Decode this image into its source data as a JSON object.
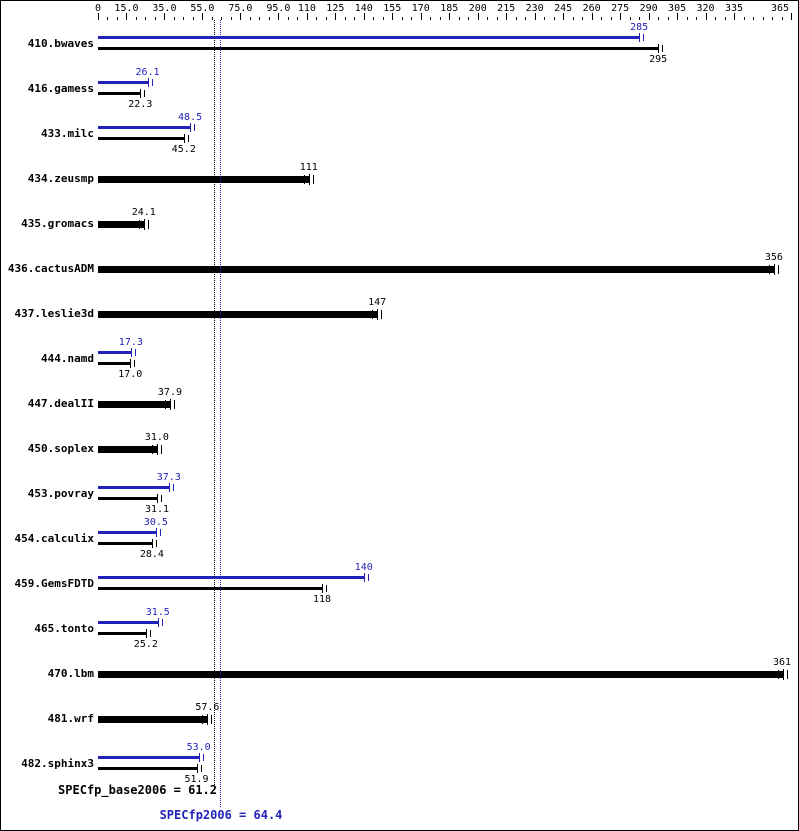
{
  "chart_data": {
    "type": "bar",
    "orientation": "horizontal",
    "xlim": [
      0,
      365
    ],
    "grid": false,
    "minor_tick_step": 5,
    "colors": {
      "peak": "#2222bb",
      "base": "#000000"
    },
    "axis_ticks": [
      {
        "value": 0,
        "label": "0"
      },
      {
        "value": 15,
        "label": "15.0"
      },
      {
        "value": 35,
        "label": "35.0"
      },
      {
        "value": 55,
        "label": "55.0"
      },
      {
        "value": 75,
        "label": "75.0"
      },
      {
        "value": 95,
        "label": "95.0"
      },
      {
        "value": 110,
        "label": "110"
      },
      {
        "value": 125,
        "label": "125"
      },
      {
        "value": 140,
        "label": "140"
      },
      {
        "value": 155,
        "label": "155"
      },
      {
        "value": 170,
        "label": "170"
      },
      {
        "value": 185,
        "label": "185"
      },
      {
        "value": 200,
        "label": "200"
      },
      {
        "value": 215,
        "label": "215"
      },
      {
        "value": 230,
        "label": "230"
      },
      {
        "value": 245,
        "label": "245"
      },
      {
        "value": 260,
        "label": "260"
      },
      {
        "value": 275,
        "label": "275"
      },
      {
        "value": 290,
        "label": "290"
      },
      {
        "value": 305,
        "label": "305"
      },
      {
        "value": 320,
        "label": "320"
      },
      {
        "value": 335,
        "label": "335"
      },
      {
        "value": 365,
        "label": "365"
      }
    ],
    "benchmarks": [
      {
        "name": "410.bwaves",
        "peak": 285,
        "peak_label": "285",
        "base": 295,
        "base_label": "295"
      },
      {
        "name": "416.gamess",
        "peak": 26.1,
        "peak_label": "26.1",
        "base": 22.3,
        "base_label": "22.3"
      },
      {
        "name": "433.milc",
        "peak": 48.5,
        "peak_label": "48.5",
        "base": 45.2,
        "base_label": "45.2"
      },
      {
        "name": "434.zeusmp",
        "base": 111,
        "base_label": "111"
      },
      {
        "name": "435.gromacs",
        "base": 24.1,
        "base_label": "24.1"
      },
      {
        "name": "436.cactusADM",
        "base": 356,
        "base_label": "356"
      },
      {
        "name": "437.leslie3d",
        "base": 147,
        "base_label": "147"
      },
      {
        "name": "444.namd",
        "peak": 17.3,
        "peak_label": "17.3",
        "base": 17.0,
        "base_label": "17.0"
      },
      {
        "name": "447.dealII",
        "base": 37.9,
        "base_label": "37.9"
      },
      {
        "name": "450.soplex",
        "base": 31.0,
        "base_label": "31.0"
      },
      {
        "name": "453.povray",
        "peak": 37.3,
        "peak_label": "37.3",
        "base": 31.1,
        "base_label": "31.1"
      },
      {
        "name": "454.calculix",
        "peak": 30.5,
        "peak_label": "30.5",
        "base": 28.4,
        "base_label": "28.4"
      },
      {
        "name": "459.GemsFDTD",
        "peak": 140,
        "peak_label": "140",
        "base": 118,
        "base_label": "118"
      },
      {
        "name": "465.tonto",
        "peak": 31.5,
        "peak_label": "31.5",
        "base": 25.2,
        "base_label": "25.2"
      },
      {
        "name": "470.lbm",
        "base": 361,
        "base_label": "361"
      },
      {
        "name": "481.wrf",
        "base": 57.6,
        "base_label": "57.6"
      },
      {
        "name": "482.sphinx3",
        "peak": 53.0,
        "peak_label": "53.0",
        "base": 51.9,
        "base_label": "51.9"
      }
    ],
    "summary": {
      "base_text": "SPECfp_base2006 = 61.2",
      "base_value": 61.2,
      "peak_text": "SPECfp2006 = 64.4",
      "peak_value": 64.4
    }
  }
}
